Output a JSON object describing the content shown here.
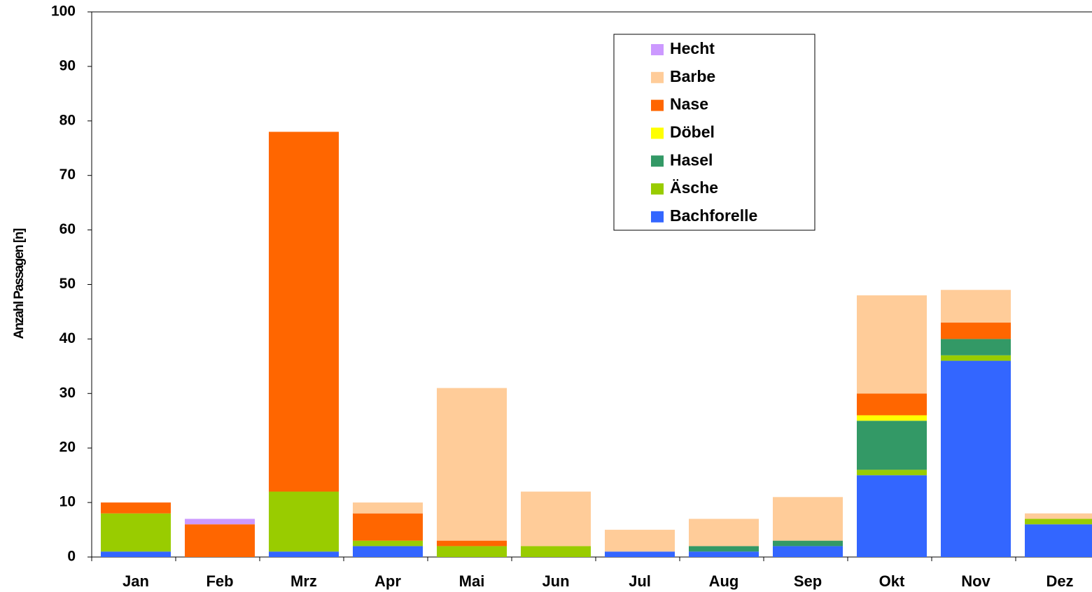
{
  "chart_data": {
    "type": "stacked_bar",
    "y_label": "Anzahl Passagen [n]",
    "categories": [
      "Jan",
      "Feb",
      "Mrz",
      "Apr",
      "Mai",
      "Jun",
      "Jul",
      "Aug",
      "Sep",
      "Okt",
      "Nov",
      "Dez"
    ],
    "series": [
      {
        "name": "Bachforelle",
        "color": "#3366ff",
        "values": [
          1,
          0,
          1,
          2,
          0,
          0,
          1,
          1,
          2,
          15,
          36,
          6
        ]
      },
      {
        "name": "Äsche",
        "color": "#99cc00",
        "values": [
          7,
          0,
          11,
          1,
          2,
          2,
          0,
          0,
          0,
          1,
          1,
          1
        ]
      },
      {
        "name": "Hasel",
        "color": "#339966",
        "values": [
          0,
          0,
          0,
          0,
          0,
          0,
          0,
          1,
          1,
          9,
          3,
          0
        ]
      },
      {
        "name": "Döbel",
        "color": "#ffff00",
        "values": [
          0,
          0,
          0,
          0,
          0,
          0,
          0,
          0,
          0,
          1,
          0,
          0
        ]
      },
      {
        "name": "Nase",
        "color": "#ff6600",
        "values": [
          2,
          6,
          66,
          5,
          1,
          0,
          0,
          0,
          0,
          4,
          3,
          0
        ]
      },
      {
        "name": "Barbe",
        "color": "#ffcc99",
        "values": [
          0,
          0,
          0,
          2,
          28,
          10,
          4,
          5,
          8,
          18,
          6,
          1
        ]
      },
      {
        "name": "Hecht",
        "color": "#cc99ff",
        "values": [
          0,
          1,
          0,
          0,
          0,
          0,
          0,
          0,
          0,
          0,
          0,
          0
        ]
      }
    ],
    "ylim": [
      0,
      100
    ],
    "yticks": [
      0,
      10,
      20,
      30,
      40,
      50,
      60,
      70,
      80,
      90,
      100
    ],
    "legend": "top-right"
  }
}
